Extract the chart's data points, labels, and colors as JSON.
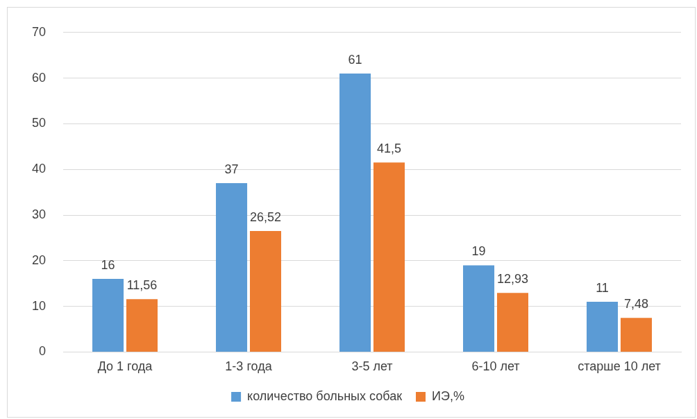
{
  "chart_data": {
    "type": "bar",
    "categories": [
      "До 1 года",
      "1-3 года",
      "3-5 лет",
      "6-10 лет",
      "старше 10 лет"
    ],
    "series": [
      {
        "name": "количество больных собак",
        "color": "#5b9bd5",
        "values": [
          16,
          37,
          61,
          19,
          11
        ],
        "value_labels": [
          "16",
          "37",
          "61",
          "19",
          "11"
        ]
      },
      {
        "name": "ИЭ,%",
        "color": "#ed7d31",
        "values": [
          11.56,
          26.52,
          41.5,
          12.93,
          7.48
        ],
        "value_labels": [
          "11,56",
          "26,52",
          "41,5",
          "12,93",
          "7,48"
        ]
      }
    ],
    "ylim": [
      0,
      70
    ],
    "yticks": [
      0,
      10,
      20,
      30,
      40,
      50,
      60,
      70
    ],
    "grid": "y",
    "legend": "bottom"
  }
}
